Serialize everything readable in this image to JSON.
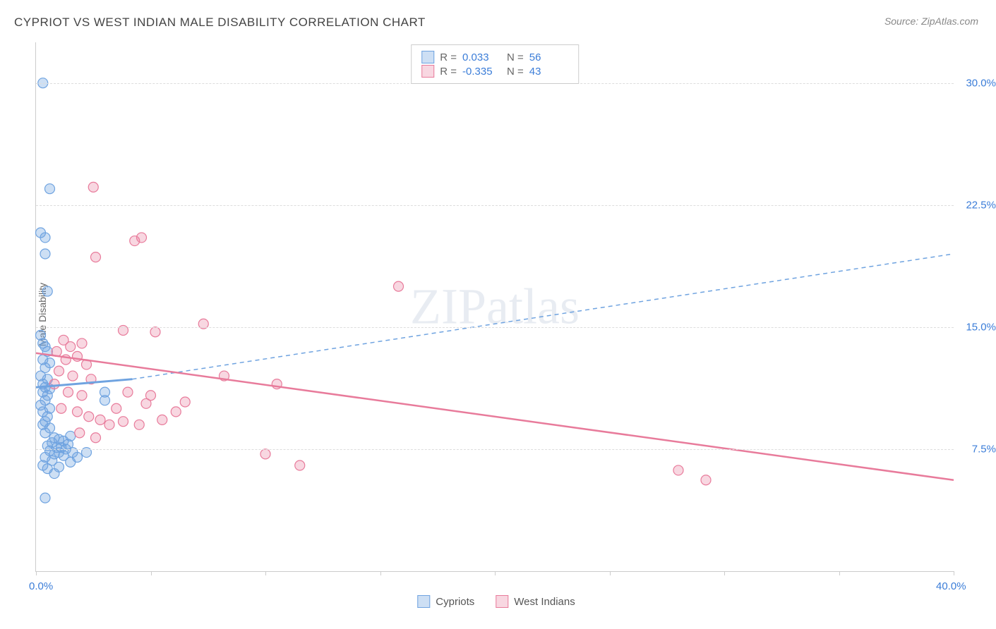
{
  "title": "CYPRIOT VS WEST INDIAN MALE DISABILITY CORRELATION CHART",
  "source": "Source: ZipAtlas.com",
  "watermark": "ZIPatlas",
  "y_axis_label": "Male Disability",
  "chart": {
    "type": "scatter",
    "xlim": [
      0,
      40
    ],
    "ylim": [
      0,
      32.5
    ],
    "x_tick_positions": [
      0,
      5,
      10,
      15,
      20,
      25,
      30,
      35,
      40
    ],
    "x_tick_labels": {
      "0": "0.0%",
      "40": "40.0%"
    },
    "y_grid_positions": [
      7.5,
      15.0,
      22.5,
      30.0
    ],
    "y_grid_labels": [
      "7.5%",
      "15.0%",
      "22.5%",
      "30.0%"
    ],
    "background_color": "#ffffff",
    "grid_color": "#dddddd",
    "axis_color": "#cccccc",
    "tick_label_color": "#3b7dd8",
    "series": [
      {
        "name": "Cypriots",
        "color": "#6fa3e0",
        "fill": "rgba(111,163,224,0.35)",
        "stroke": "#6fa3e0",
        "marker_radius": 7,
        "R": "0.033",
        "N": "56",
        "trend_solid": {
          "x1": 0,
          "y1": 11.3,
          "x2": 4.2,
          "y2": 11.8,
          "width": 3
        },
        "trend_dashed": {
          "x1": 4.2,
          "y1": 11.8,
          "x2": 40,
          "y2": 19.5,
          "dash": "6,5",
          "width": 1.5
        },
        "points": [
          [
            0.3,
            30.0
          ],
          [
            0.6,
            23.5
          ],
          [
            0.2,
            20.8
          ],
          [
            0.4,
            20.5
          ],
          [
            0.4,
            19.5
          ],
          [
            0.5,
            17.2
          ],
          [
            0.2,
            14.5
          ],
          [
            0.3,
            14.0
          ],
          [
            0.4,
            13.8
          ],
          [
            0.5,
            13.5
          ],
          [
            0.3,
            13.0
          ],
          [
            0.6,
            12.8
          ],
          [
            0.4,
            12.5
          ],
          [
            0.2,
            12.0
          ],
          [
            0.5,
            11.8
          ],
          [
            0.3,
            11.5
          ],
          [
            0.4,
            11.3
          ],
          [
            0.6,
            11.2
          ],
          [
            0.3,
            11.0
          ],
          [
            0.5,
            10.8
          ],
          [
            0.4,
            10.5
          ],
          [
            0.2,
            10.2
          ],
          [
            0.6,
            10.0
          ],
          [
            0.3,
            9.8
          ],
          [
            0.5,
            9.5
          ],
          [
            0.4,
            9.2
          ],
          [
            0.3,
            9.0
          ],
          [
            0.6,
            8.8
          ],
          [
            0.4,
            8.5
          ],
          [
            1.5,
            8.3
          ],
          [
            0.8,
            8.2
          ],
          [
            1.0,
            8.1
          ],
          [
            1.2,
            8.0
          ],
          [
            0.7,
            7.9
          ],
          [
            1.4,
            7.8
          ],
          [
            0.5,
            7.7
          ],
          [
            1.1,
            7.6
          ],
          [
            0.9,
            7.6
          ],
          [
            1.3,
            7.5
          ],
          [
            0.6,
            7.4
          ],
          [
            1.0,
            7.3
          ],
          [
            1.6,
            7.3
          ],
          [
            0.8,
            7.2
          ],
          [
            1.2,
            7.1
          ],
          [
            0.4,
            7.0
          ],
          [
            1.8,
            7.0
          ],
          [
            0.7,
            6.8
          ],
          [
            1.5,
            6.7
          ],
          [
            0.3,
            6.5
          ],
          [
            1.0,
            6.4
          ],
          [
            0.5,
            6.3
          ],
          [
            0.8,
            6.0
          ],
          [
            0.4,
            4.5
          ],
          [
            3.0,
            11.0
          ],
          [
            3.0,
            10.5
          ],
          [
            2.2,
            7.3
          ]
        ]
      },
      {
        "name": "West Indians",
        "color": "#e87b9b",
        "fill": "rgba(232,123,155,0.3)",
        "stroke": "#e87b9b",
        "marker_radius": 7,
        "R": "-0.335",
        "N": "43",
        "trend_solid": {
          "x1": 0,
          "y1": 13.4,
          "x2": 40,
          "y2": 5.6,
          "width": 2.5
        },
        "trend_dashed": null,
        "points": [
          [
            2.5,
            23.6
          ],
          [
            4.6,
            20.5
          ],
          [
            4.3,
            20.3
          ],
          [
            2.6,
            19.3
          ],
          [
            15.8,
            17.5
          ],
          [
            3.8,
            14.8
          ],
          [
            5.2,
            14.7
          ],
          [
            7.3,
            15.2
          ],
          [
            1.2,
            14.2
          ],
          [
            2.0,
            14.0
          ],
          [
            1.5,
            13.8
          ],
          [
            0.9,
            13.5
          ],
          [
            1.8,
            13.2
          ],
          [
            1.3,
            13.0
          ],
          [
            2.2,
            12.7
          ],
          [
            1.0,
            12.3
          ],
          [
            1.6,
            12.0
          ],
          [
            2.4,
            11.8
          ],
          [
            8.2,
            12.0
          ],
          [
            10.5,
            11.5
          ],
          [
            1.4,
            11.0
          ],
          [
            2.0,
            10.8
          ],
          [
            4.0,
            11.0
          ],
          [
            5.0,
            10.8
          ],
          [
            4.8,
            10.3
          ],
          [
            6.5,
            10.4
          ],
          [
            1.8,
            9.8
          ],
          [
            3.5,
            10.0
          ],
          [
            2.3,
            9.5
          ],
          [
            2.8,
            9.3
          ],
          [
            3.8,
            9.2
          ],
          [
            4.5,
            9.0
          ],
          [
            3.2,
            9.0
          ],
          [
            1.9,
            8.5
          ],
          [
            2.6,
            8.2
          ],
          [
            6.1,
            9.8
          ],
          [
            10.0,
            7.2
          ],
          [
            11.5,
            6.5
          ],
          [
            5.5,
            9.3
          ],
          [
            28.0,
            6.2
          ],
          [
            29.2,
            5.6
          ],
          [
            1.1,
            10.0
          ],
          [
            0.8,
            11.5
          ]
        ]
      }
    ]
  },
  "legend": {
    "series1": "Cypriots",
    "series2": "West Indians"
  }
}
